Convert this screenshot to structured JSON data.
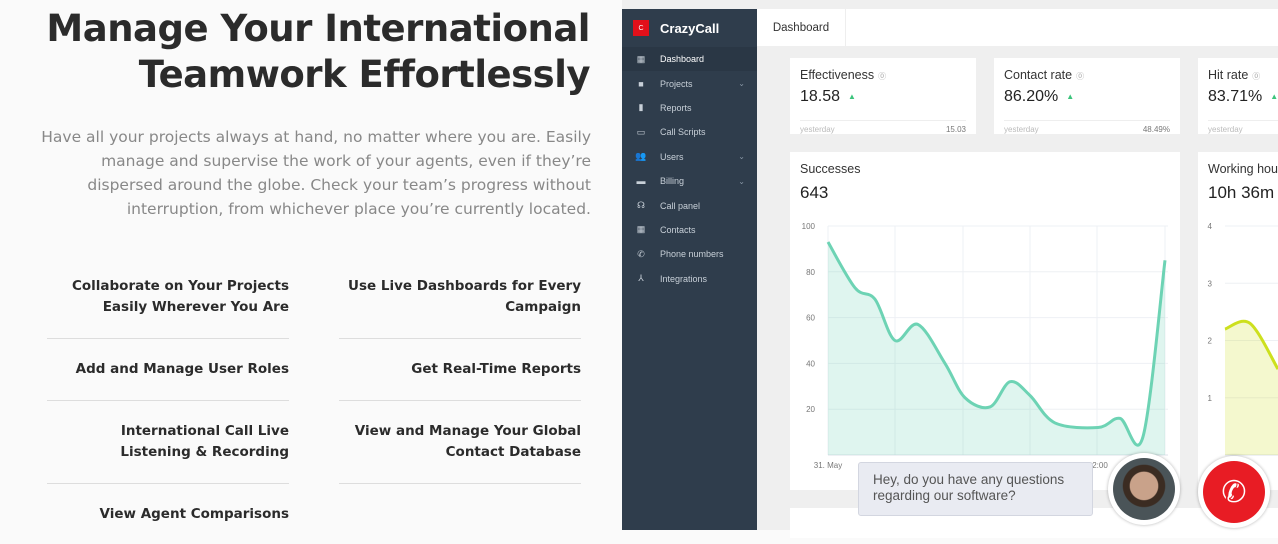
{
  "hero": {
    "title_line1": "Manage Your International",
    "title_line2": "Teamwork Effortlessly",
    "lead": "Have all your projects always at hand, no matter where you are. Easily manage and supervise the work of your agents, even if they’re dispersed around the globe. Check your team’s progress without interruption, from whichever place you’re currently located."
  },
  "features": [
    "Collaborate on Your Projects Easily Wherever You Are",
    "Use Live Dashboards for Every Campaign",
    "Add and Manage User Roles",
    "Get Real-Time Reports",
    "International Call Live Listening & Recording",
    "View and Manage Your Global Contact Database",
    "View Agent Comparisons"
  ],
  "app": {
    "brand": "CrazyCall",
    "brand_letter": "C",
    "brand_color": "#e2101a",
    "tab": "Dashboard",
    "nav": [
      {
        "label": "Dashboard",
        "icon": "dashboard-icon",
        "active": true
      },
      {
        "label": "Projects",
        "icon": "briefcase-icon",
        "chevron": true
      },
      {
        "label": "Reports",
        "icon": "file-icon"
      },
      {
        "label": "Call Scripts",
        "icon": "book-icon"
      },
      {
        "label": "Users",
        "icon": "users-icon",
        "chevron": true
      },
      {
        "label": "Billing",
        "icon": "credit-card-icon",
        "chevron": true
      },
      {
        "label": "Call panel",
        "icon": "headset-icon"
      },
      {
        "label": "Contacts",
        "icon": "contacts-icon"
      },
      {
        "label": "Phone numbers",
        "icon": "phone-icon"
      },
      {
        "label": "Integrations",
        "icon": "integrations-icon"
      }
    ],
    "kpis": [
      {
        "title": "Effectiveness",
        "value": "18.58",
        "footer": "yesterday",
        "prev": "15.03"
      },
      {
        "title": "Contact rate",
        "value": "86.20%",
        "footer": "yesterday",
        "prev": "48.49%"
      },
      {
        "title": "Hit rate",
        "value": "83.71%",
        "footer": "yesterday",
        "prev": ""
      }
    ],
    "successes": {
      "title": "Successes",
      "value": "643"
    },
    "working": {
      "title": "Working hou",
      "value": "10h 36m"
    }
  },
  "chat": {
    "message": "Hey, do you have any questions regarding our software?"
  },
  "chart_data": [
    {
      "type": "area",
      "title": "Successes",
      "ylim": [
        0,
        100
      ],
      "yticks": [
        20,
        40,
        60,
        80,
        100
      ],
      "xticks": [
        "31. May",
        "2:00"
      ],
      "color": "#6dd3b4",
      "grid": true,
      "values": [
        93,
        73,
        68,
        50,
        57,
        40,
        25,
        21,
        32,
        26,
        14,
        12,
        16,
        8,
        85
      ]
    },
    {
      "type": "area",
      "title": "Working hou",
      "ylim": [
        0,
        4
      ],
      "yticks": [
        1,
        2,
        3,
        4
      ],
      "color": "#cde01e",
      "grid": true,
      "values": [
        2.2,
        2.3,
        1.5
      ]
    }
  ]
}
